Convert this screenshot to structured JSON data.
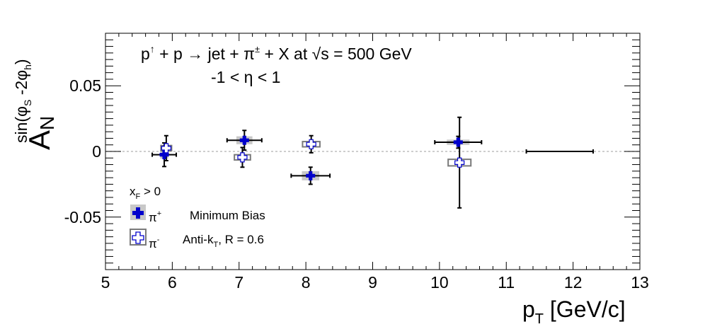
{
  "chart_data": {
    "type": "scatter",
    "title_parts": {
      "p": "p",
      "up_arrow": "↑",
      "plus_p": " + p ",
      "arrow": "→",
      "jet_pi": " jet + π",
      "pm": "±",
      "x_at": " + X at ",
      "sqrt": "√",
      "s_eq": "s = 500 GeV"
    },
    "subtitle": "-1 < η < 1",
    "xlabel": {
      "main": "p",
      "sub": "T",
      "rest": " [GeV/c]"
    },
    "ylabel": {
      "main": "A",
      "sub": "N",
      "sup": "sin(φ",
      "sup_s": "S",
      "sup_mid": " -2φ",
      "sup_h": "h",
      "sup_end": ")"
    },
    "xlim": [
      5,
      13
    ],
    "ylim": [
      -0.09,
      0.09
    ],
    "xticks": [
      5,
      6,
      7,
      8,
      9,
      10,
      11,
      12,
      13
    ],
    "yticks": [
      {
        "v": -0.05,
        "label": "-0.05"
      },
      {
        "v": 0,
        "label": "0"
      },
      {
        "v": 0.05,
        "label": "0.05"
      }
    ],
    "zero_line": true,
    "series": [
      {
        "name": "π+",
        "marker": "filled-cross",
        "color": "#0000cc",
        "points": [
          {
            "x": 5.88,
            "y": -0.0025,
            "xerr": 0.18,
            "yerr": 0.009,
            "syst_x": 0.06,
            "syst_y": 0.003
          },
          {
            "x": 7.08,
            "y": 0.0085,
            "xerr": 0.26,
            "yerr": 0.0075,
            "syst_x": 0.12,
            "syst_y": 0.003
          },
          {
            "x": 8.07,
            "y": -0.0185,
            "xerr": 0.29,
            "yerr": 0.0065,
            "syst_x": 0.13,
            "syst_y": 0.0035
          },
          {
            "x": 10.28,
            "y": 0.007,
            "xerr": 0.35,
            "yerr": 0.0045,
            "syst_x": 0.17,
            "syst_y": 0.002
          },
          {
            "x": 11.8,
            "y": 0.0,
            "xerr": 0.5,
            "yerr": 0.0,
            "syst_x": 0.0,
            "syst_y": 0.0
          }
        ]
      },
      {
        "name": "π-",
        "marker": "open-cross",
        "color": "#000000",
        "points": [
          {
            "x": 5.91,
            "y": 0.0025,
            "xerr": 0.0,
            "yerr": 0.0095,
            "syst_x": 0.08,
            "syst_y": 0.002
          },
          {
            "x": 7.05,
            "y": -0.0045,
            "xerr": 0.0,
            "yerr": 0.0075,
            "syst_x": 0.12,
            "syst_y": 0.002
          },
          {
            "x": 8.08,
            "y": 0.0055,
            "xerr": 0.0,
            "yerr": 0.0065,
            "syst_x": 0.13,
            "syst_y": 0.002
          },
          {
            "x": 10.3,
            "y": -0.0085,
            "xerr": 0.0,
            "yerr": 0.0345,
            "syst_x": 0.17,
            "syst_y": 0.0025
          }
        ]
      }
    ],
    "legend": {
      "placement": "bottom-left",
      "header": "x",
      "header_sub": "F",
      "header_rest": " > 0",
      "entries": [
        {
          "symbol": "π",
          "sup": "+",
          "note": "Minimum Bias",
          "marker": "filled-cross"
        },
        {
          "symbol": "π",
          "sup": "-",
          "note": "Anti-k",
          "note_sub": "T",
          "note_rest": ", R = 0.6",
          "marker": "open-cross"
        }
      ]
    }
  }
}
